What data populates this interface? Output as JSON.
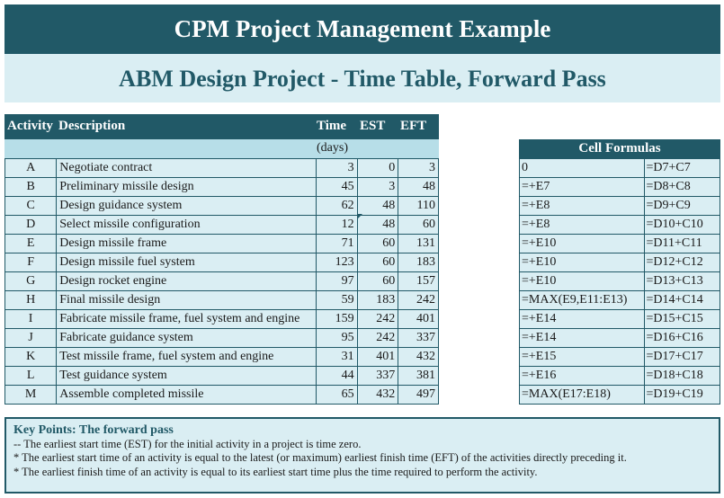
{
  "title": "CPM Project Management Example",
  "subtitle": "ABM Design Project - Time Table, Forward Pass",
  "main_table": {
    "headers": {
      "activity": "Activity",
      "description": "Description",
      "time": "Time",
      "est": "EST",
      "eft": "EFT"
    },
    "units": "(days)",
    "rows": [
      {
        "activity": "A",
        "description": "Negotiate contract",
        "time": "3",
        "est": "0",
        "eft": "3"
      },
      {
        "activity": "B",
        "description": "Preliminary missile design",
        "time": "45",
        "est": "3",
        "eft": "48"
      },
      {
        "activity": "C",
        "description": "Design guidance system",
        "time": "62",
        "est": "48",
        "eft": "110"
      },
      {
        "activity": "D",
        "description": "Select missile configuration",
        "time": "12",
        "est": "48",
        "eft": "60"
      },
      {
        "activity": "E",
        "description": "Design missile frame",
        "time": "71",
        "est": "60",
        "eft": "131"
      },
      {
        "activity": "F",
        "description": "Design missile fuel system",
        "time": "123",
        "est": "60",
        "eft": "183"
      },
      {
        "activity": "G",
        "description": "Design rocket engine",
        "time": "97",
        "est": "60",
        "eft": "157"
      },
      {
        "activity": "H",
        "description": "Final missile design",
        "time": "59",
        "est": "183",
        "eft": "242"
      },
      {
        "activity": "I",
        "description": "Fabricate missile frame, fuel system and engine",
        "time": "159",
        "est": "242",
        "eft": "401"
      },
      {
        "activity": "J",
        "description": "Fabricate guidance system",
        "time": "95",
        "est": "242",
        "eft": "337"
      },
      {
        "activity": "K",
        "description": "Test missile frame, fuel system and engine",
        "time": "31",
        "est": "401",
        "eft": "432"
      },
      {
        "activity": "L",
        "description": "Test guidance system",
        "time": "44",
        "est": "337",
        "eft": "381"
      },
      {
        "activity": "M",
        "description": "Assemble completed missile",
        "time": "65",
        "est": "432",
        "eft": "497"
      }
    ]
  },
  "formulas": {
    "header": "Cell Formulas",
    "rows": [
      {
        "est": "0",
        "eft": "=D7+C7"
      },
      {
        "est": "=+E7",
        "eft": "=D8+C8"
      },
      {
        "est": "=+E8",
        "eft": "=D9+C9"
      },
      {
        "est": "=+E8",
        "eft": "=D10+C10"
      },
      {
        "est": "=+E10",
        "eft": "=D11+C11"
      },
      {
        "est": "=+E10",
        "eft": "=D12+C12"
      },
      {
        "est": "=+E10",
        "eft": "=D13+C13"
      },
      {
        "est": "=MAX(E9,E11:E13)",
        "eft": "=D14+C14"
      },
      {
        "est": "=+E14",
        "eft": "=D15+C15"
      },
      {
        "est": "=+E14",
        "eft": "=D16+C16"
      },
      {
        "est": "=+E15",
        "eft": "=D17+C17"
      },
      {
        "est": "=+E16",
        "eft": "=D18+C18"
      },
      {
        "est": "=MAX(E17:E18)",
        "eft": "=D19+C19"
      }
    ]
  },
  "key_points": {
    "title": "Key Points: The forward pass",
    "lines": [
      "-- The earliest start time (EST) for the initial  activity in a project is time zero.",
      "* The earliest start time of an activity is equal to the latest (or maximum) earliest finish time (EFT) of the activities directly preceding it.",
      "* The earliest finish time of an activity is equal to its earliest start time plus the time required to perform the activity."
    ]
  },
  "colors": {
    "dark": "#215967",
    "light": "#daeef3",
    "mid": "#b7dee8"
  }
}
